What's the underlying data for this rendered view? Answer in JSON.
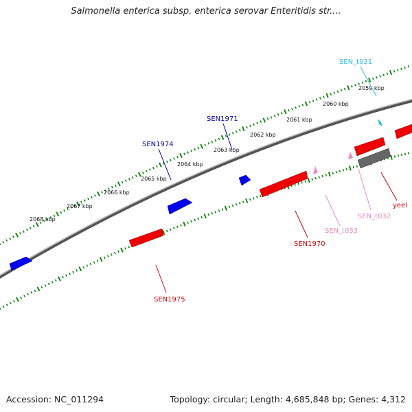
{
  "title": "Salmonella enterica subsp. enterica serovar Enteritidis str....",
  "accession": "Accession: NC_011294",
  "topology_info": "Topology: circular; Length: 4,685,848 bp; Genes: 4,312",
  "ruler_labels": [
    {
      "id": "kbp-2059",
      "text": "2059 kbp"
    },
    {
      "id": "kbp-2060",
      "text": "2060 kbp"
    },
    {
      "id": "kbp-2061",
      "text": "2061 kbp"
    },
    {
      "id": "kbp-2062",
      "text": "2062 kbp"
    },
    {
      "id": "kbp-2063",
      "text": "2063 kbp"
    },
    {
      "id": "kbp-2064",
      "text": "2064 kbp"
    },
    {
      "id": "kbp-2065",
      "text": "2065 kbp"
    },
    {
      "id": "kbp-2066",
      "text": "2066 kbp"
    },
    {
      "id": "kbp-2067",
      "text": "2067 kbp"
    },
    {
      "id": "kbp-2068",
      "text": "2068 kbp"
    }
  ],
  "gene_labels": [
    {
      "id": "SEN_t031",
      "text": "SEN_t031",
      "color": "#33bbdd"
    },
    {
      "id": "SEN1971",
      "text": "SEN1971",
      "color": "#0000aa"
    },
    {
      "id": "SEN1974",
      "text": "SEN1974",
      "color": "#0000aa"
    },
    {
      "id": "SEN1970",
      "text": "SEN1970",
      "color": "#cc0000"
    },
    {
      "id": "SEN_t033",
      "text": "SEN_t033",
      "color": "#ee88bb"
    },
    {
      "id": "SEN_t032",
      "text": "SEN_t032",
      "color": "#ee88bb"
    },
    {
      "id": "yeel",
      "text": "yeel",
      "color": "#cc0000"
    },
    {
      "id": "SEN1975",
      "text": "SEN1975",
      "color": "#cc0000"
    }
  ],
  "colors": {
    "forward_gene": "#0000ee",
    "reverse_gene": "#ee0000",
    "trna": "#ee88bb",
    "trna_forward": "#33bbdd",
    "pseudo": "#666666",
    "backbone": "#777777",
    "ruler": "#118811"
  }
}
